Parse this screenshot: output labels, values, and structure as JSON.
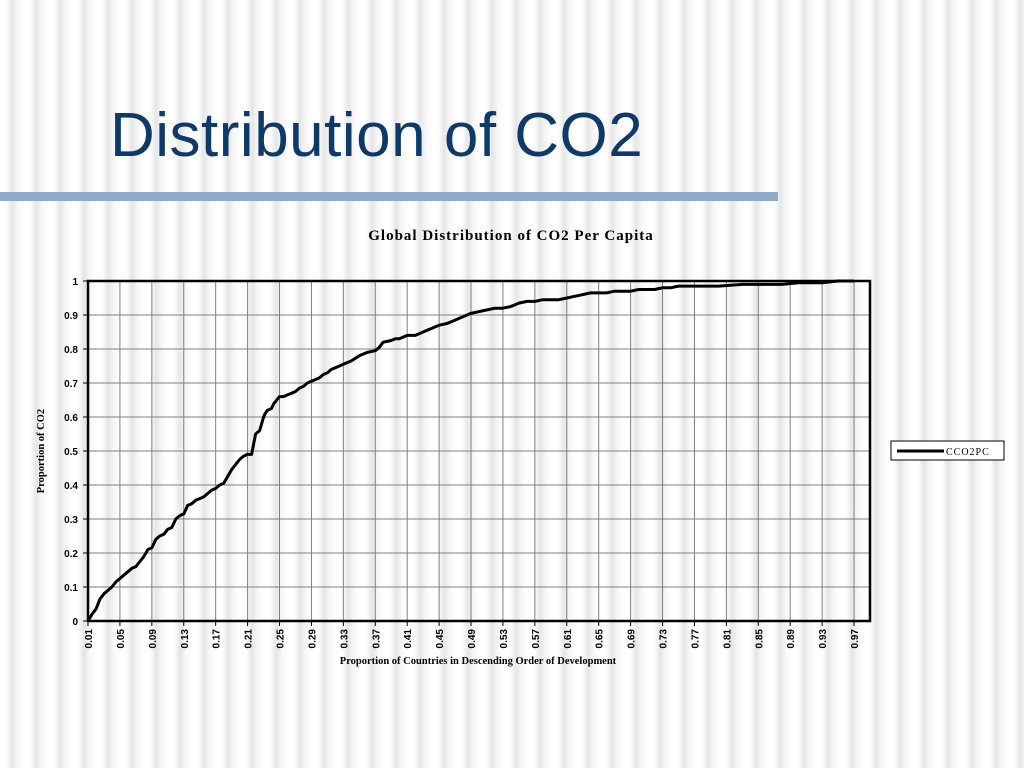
{
  "slide": {
    "title": "Distribution of CO2"
  },
  "colors": {
    "title": "#0d3a6b",
    "rule": "#8fa9c8",
    "line": "#000000",
    "grid": "#7f7f7f"
  },
  "chart_data": {
    "type": "line",
    "title": "Global Distribution of CO2 Per Capita",
    "xlabel": "Proportion of Countries in Descending Order of Development",
    "ylabel": "Proportion of CO2",
    "ylim": [
      0,
      1
    ],
    "xlim": [
      0.01,
      0.99
    ],
    "yticks": [
      "0",
      "0.1",
      "0.2",
      "0.3",
      "0.4",
      "0.5",
      "0.6",
      "0.7",
      "0.8",
      "0.9",
      "1"
    ],
    "xticks": [
      "0.01",
      "0.05",
      "0.09",
      "0.13",
      "0.17",
      "0.21",
      "0.25",
      "0.29",
      "0.33",
      "0.37",
      "0.41",
      "0.45",
      "0.49",
      "0.53",
      "0.57",
      "0.61",
      "0.65",
      "0.69",
      "0.73",
      "0.77",
      "0.81",
      "0.85",
      "0.89",
      "0.93",
      "0.97"
    ],
    "grid": true,
    "legend_position": "right",
    "series": [
      {
        "name": "CCO2PC",
        "x": [
          0.01,
          0.015,
          0.02,
          0.025,
          0.03,
          0.04,
          0.045,
          0.05,
          0.06,
          0.065,
          0.07,
          0.075,
          0.08,
          0.085,
          0.09,
          0.095,
          0.1,
          0.105,
          0.11,
          0.115,
          0.12,
          0.125,
          0.13,
          0.135,
          0.14,
          0.145,
          0.15,
          0.155,
          0.16,
          0.165,
          0.17,
          0.175,
          0.18,
          0.19,
          0.2,
          0.205,
          0.21,
          0.215,
          0.22,
          0.225,
          0.23,
          0.232,
          0.235,
          0.24,
          0.243,
          0.245,
          0.25,
          0.255,
          0.26,
          0.265,
          0.27,
          0.275,
          0.28,
          0.285,
          0.29,
          0.295,
          0.3,
          0.305,
          0.31,
          0.315,
          0.32,
          0.325,
          0.33,
          0.34,
          0.35,
          0.36,
          0.37,
          0.375,
          0.38,
          0.39,
          0.395,
          0.4,
          0.405,
          0.41,
          0.42,
          0.425,
          0.43,
          0.435,
          0.44,
          0.445,
          0.45,
          0.46,
          0.47,
          0.475,
          0.48,
          0.49,
          0.5,
          0.51,
          0.52,
          0.53,
          0.54,
          0.55,
          0.56,
          0.57,
          0.58,
          0.59,
          0.6,
          0.61,
          0.62,
          0.63,
          0.64,
          0.65,
          0.66,
          0.67,
          0.68,
          0.69,
          0.7,
          0.71,
          0.72,
          0.73,
          0.74,
          0.75,
          0.77,
          0.8,
          0.83,
          0.85,
          0.86,
          0.88,
          0.9,
          0.92,
          0.93,
          0.95,
          0.96,
          0.97
        ],
        "values": [
          0.0,
          0.02,
          0.035,
          0.065,
          0.08,
          0.1,
          0.115,
          0.125,
          0.145,
          0.155,
          0.16,
          0.175,
          0.19,
          0.21,
          0.215,
          0.24,
          0.25,
          0.255,
          0.27,
          0.275,
          0.3,
          0.31,
          0.315,
          0.34,
          0.345,
          0.355,
          0.36,
          0.365,
          0.375,
          0.385,
          0.39,
          0.4,
          0.405,
          0.445,
          0.475,
          0.485,
          0.49,
          0.49,
          0.55,
          0.56,
          0.6,
          0.61,
          0.62,
          0.625,
          0.64,
          0.645,
          0.66,
          0.66,
          0.665,
          0.67,
          0.675,
          0.685,
          0.69,
          0.7,
          0.705,
          0.71,
          0.715,
          0.725,
          0.73,
          0.74,
          0.745,
          0.75,
          0.755,
          0.765,
          0.78,
          0.79,
          0.795,
          0.805,
          0.82,
          0.825,
          0.83,
          0.83,
          0.835,
          0.84,
          0.84,
          0.845,
          0.85,
          0.855,
          0.86,
          0.865,
          0.87,
          0.875,
          0.885,
          0.89,
          0.895,
          0.905,
          0.91,
          0.915,
          0.92,
          0.92,
          0.925,
          0.935,
          0.94,
          0.94,
          0.945,
          0.945,
          0.945,
          0.95,
          0.955,
          0.96,
          0.965,
          0.965,
          0.965,
          0.97,
          0.97,
          0.97,
          0.975,
          0.975,
          0.975,
          0.98,
          0.98,
          0.985,
          0.985,
          0.985,
          0.99,
          0.99,
          0.99,
          0.99,
          0.995,
          0.995,
          0.995,
          1.0,
          1.0,
          1.0
        ]
      }
    ]
  }
}
